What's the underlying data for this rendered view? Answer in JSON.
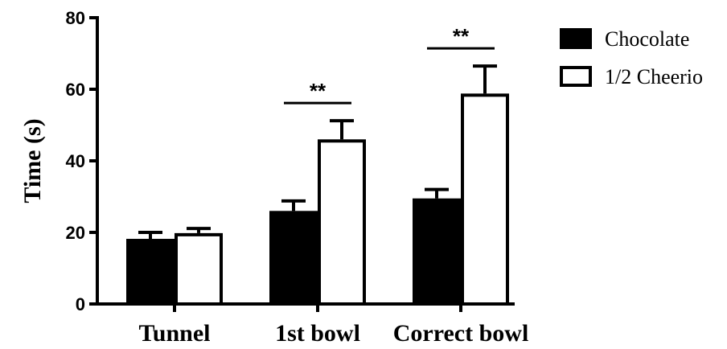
{
  "chart_data": {
    "type": "bar",
    "categories": [
      "Tunnel",
      "1st bowl",
      "Correct bowl"
    ],
    "ylabel": "Time (s)",
    "xlabel": "",
    "title": "",
    "ylim": [
      0,
      80
    ],
    "yticks": [
      0,
      20,
      40,
      60,
      80
    ],
    "series": [
      {
        "name": "Chocolate",
        "values": [
          18.2,
          26.0,
          29.5
        ],
        "errors": [
          1.8,
          2.8,
          2.5
        ],
        "fill": "#000000"
      },
      {
        "name": "1/2 Cheerio",
        "values": [
          19.8,
          46.0,
          58.8
        ],
        "errors": [
          1.3,
          5.2,
          7.7
        ],
        "fill": "#ffffff"
      }
    ],
    "annotations": [
      {
        "category": "1st bowl",
        "text": "**"
      },
      {
        "category": "Correct bowl",
        "text": "**"
      }
    ],
    "legend_position": "top-right",
    "grid": false,
    "colors": {
      "axis": "#000000",
      "chocolate": "#000000",
      "cheerio": "#ffffff"
    }
  }
}
